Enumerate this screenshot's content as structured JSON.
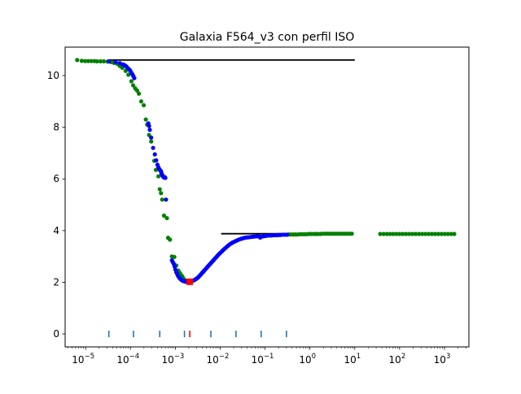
{
  "chart_data": {
    "type": "scatter",
    "title": "Galaxia F564_v3 con perfil ISO",
    "xlabel": "",
    "ylabel": "",
    "x_scale": "log",
    "xlim": [
      3.5e-06,
      3500
    ],
    "ylim": [
      -0.5,
      11.1
    ],
    "grid": false,
    "x_ticks": [
      {
        "base": "10",
        "exp": "−5",
        "value": 1e-05
      },
      {
        "base": "10",
        "exp": "−4",
        "value": 0.0001
      },
      {
        "base": "10",
        "exp": "−3",
        "value": 0.001
      },
      {
        "base": "10",
        "exp": "−2",
        "value": 0.01
      },
      {
        "base": "10",
        "exp": "−1",
        "value": 0.1
      },
      {
        "base": "10",
        "exp": "0",
        "value": 1
      },
      {
        "base": "10",
        "exp": "1",
        "value": 10
      },
      {
        "base": "10",
        "exp": "2",
        "value": 100
      },
      {
        "base": "10",
        "exp": "3",
        "value": 1000
      }
    ],
    "y_ticks": [
      {
        "label": "0",
        "value": 0
      },
      {
        "label": "2",
        "value": 2
      },
      {
        "label": "4",
        "value": 4
      },
      {
        "label": "6",
        "value": 6
      },
      {
        "label": "8",
        "value": 8
      },
      {
        "label": "10",
        "value": 10
      }
    ],
    "colors": {
      "green": "#008000",
      "blue": "#0000ff",
      "red": "#ff0000",
      "black": "#000000",
      "rug_blue": "#1f77b4"
    },
    "series": [
      {
        "color": "green",
        "marker": "dot",
        "x": [
          6.5e-06,
          8.2e-06,
          9.8e-06,
          1.15e-05,
          1.35e-05,
          1.58e-05,
          1.8e-05,
          2.15e-05,
          2.55e-05,
          3.1e-05,
          3.7e-05,
          4.3e-05,
          5.1e-05,
          5.8e-05,
          6.6e-05,
          7.8e-05,
          9e-05,
          0.000105,
          0.000115,
          0.000128,
          0.000141,
          0.000154,
          0.000174,
          0.000198,
          0.00022,
          0.000236,
          0.00026,
          0.00029,
          0.00034,
          0.00037,
          0.00042,
          0.00045,
          0.00048,
          0.00051,
          0.00056,
          0.00065,
          0.00069,
          0.00076,
          0.00084,
          0.00095,
          0.00105,
          0.00117,
          0.00128,
          0.0014,
          0.00145,
          0.0015,
          0.00158,
          0.00167,
          0.33,
          0.37,
          0.42,
          0.47,
          0.53,
          0.6,
          0.67,
          0.75,
          0.84,
          0.94,
          1.05,
          1.2,
          1.35,
          1.5,
          1.7,
          1.9,
          2.15,
          2.4,
          2.7,
          3.0,
          3.4,
          3.8,
          4.3,
          4.8,
          5.4,
          6.1,
          6.8,
          7.7,
          8.6,
          37,
          44,
          52,
          61,
          72,
          85,
          100,
          118,
          139,
          164,
          193,
          228,
          269,
          317,
          374,
          441,
          521,
          614,
          725,
          855,
          1010,
          1190,
          1400,
          1650
        ],
        "y": [
          10.6,
          10.57,
          10.56,
          10.56,
          10.56,
          10.56,
          10.55,
          10.55,
          10.55,
          10.54,
          10.52,
          10.49,
          10.45,
          10.37,
          10.3,
          10.18,
          10.03,
          9.78,
          9.62,
          9.5,
          9.42,
          9.3,
          9.0,
          8.85,
          8.3,
          8.1,
          7.7,
          7.45,
          6.7,
          6.35,
          6.1,
          5.6,
          5.45,
          5.2,
          4.58,
          4.48,
          3.72,
          3.65,
          3.0,
          2.98,
          2.65,
          2.45,
          2.35,
          2.25,
          2.2,
          2.15,
          2.1,
          2.08,
          3.85,
          3.85,
          3.85,
          3.85,
          3.85,
          3.86,
          3.86,
          3.86,
          3.86,
          3.87,
          3.87,
          3.87,
          3.87,
          3.87,
          3.87,
          3.88,
          3.88,
          3.88,
          3.88,
          3.88,
          3.88,
          3.88,
          3.88,
          3.88,
          3.88,
          3.88,
          3.88,
          3.88,
          3.88,
          3.87,
          3.87,
          3.87,
          3.87,
          3.87,
          3.87,
          3.87,
          3.87,
          3.87,
          3.87,
          3.87,
          3.87,
          3.87,
          3.87,
          3.87,
          3.87,
          3.87,
          3.87,
          3.87,
          3.87,
          3.87,
          3.87,
          3.87,
          3.87
        ]
      },
      {
        "color": "blue",
        "marker": "dot",
        "x": [
          3.3e-05,
          4.7e-05,
          5.8e-05,
          6.8e-05,
          7.4e-05,
          8e-05,
          8.6e-05,
          9.2e-05,
          9.8e-05,
          0.000104,
          0.00011,
          0.000116,
          0.000122,
          0.00025,
          0.00026,
          0.00027,
          0.00029,
          0.00032,
          0.00035,
          0.000375,
          0.0004,
          0.00042,
          0.00044,
          0.00046,
          0.00048,
          0.00049,
          0.0005,
          0.00051,
          0.00052,
          0.00053,
          0.00054,
          0.00055,
          0.00056,
          0.00057,
          0.0006,
          0.00058,
          0.00062,
          0.00084,
          0.00088,
          0.00092,
          0.00096,
          0.001,
          0.00105,
          0.0011,
          0.00115,
          0.0012,
          0.00125,
          0.0013,
          0.00135,
          0.0014,
          0.00146,
          0.00152,
          0.00158,
          0.00165,
          0.00172,
          0.0018,
          0.00188,
          0.00196,
          0.00205,
          0.00215,
          0.00225,
          0.00236,
          0.00248,
          0.0026,
          0.00272,
          0.00285,
          0.00298,
          0.00312,
          0.00327,
          0.00343,
          0.0036,
          0.00378,
          0.00396,
          0.00415,
          0.00435,
          0.00456,
          0.00478,
          0.005,
          0.00525,
          0.0055,
          0.00577,
          0.00605,
          0.00635,
          0.00665,
          0.00698,
          0.00732,
          0.00768,
          0.00806,
          0.00845,
          0.00886,
          0.0093,
          0.0098,
          0.0104,
          0.0111,
          0.0119,
          0.0128,
          0.0138,
          0.0149,
          0.0161,
          0.0175,
          0.019,
          0.0207,
          0.0225,
          0.0245,
          0.0267,
          0.0292,
          0.032,
          0.035,
          0.038,
          0.042,
          0.047,
          0.052,
          0.058,
          0.065,
          0.073,
          0.078,
          0.082,
          0.09,
          0.1,
          0.11,
          0.125,
          0.14,
          0.16,
          0.18,
          0.2,
          0.22,
          0.25,
          0.28,
          0.31
        ],
        "y": [
          10.55,
          10.52,
          10.48,
          10.43,
          10.4,
          10.36,
          10.3,
          10.25,
          10.2,
          10.12,
          10.05,
          9.98,
          9.9,
          8.15,
          8.05,
          7.9,
          7.6,
          7.2,
          6.95,
          6.72,
          6.55,
          6.45,
          6.38,
          6.33,
          6.3,
          6.22,
          6.18,
          6.15,
          6.12,
          6.1,
          6.08,
          6.07,
          6.06,
          6.05,
          6.04,
          6.07,
          5.2,
          2.85,
          2.78,
          2.72,
          2.62,
          2.5,
          2.4,
          2.32,
          2.25,
          2.2,
          2.16,
          2.13,
          2.1,
          2.08,
          2.06,
          2.05,
          2.04,
          2.03,
          2.02,
          2.02,
          2.02,
          2.02,
          2.03,
          2.03,
          2.04,
          2.05,
          2.06,
          2.08,
          2.1,
          2.12,
          2.14,
          2.17,
          2.2,
          2.24,
          2.28,
          2.32,
          2.36,
          2.4,
          2.44,
          2.48,
          2.52,
          2.56,
          2.6,
          2.64,
          2.68,
          2.72,
          2.76,
          2.8,
          2.84,
          2.88,
          2.92,
          2.96,
          3.0,
          3.04,
          3.08,
          3.12,
          3.16,
          3.21,
          3.26,
          3.31,
          3.36,
          3.41,
          3.46,
          3.5,
          3.54,
          3.57,
          3.6,
          3.63,
          3.66,
          3.68,
          3.7,
          3.72,
          3.73,
          3.74,
          3.75,
          3.76,
          3.77,
          3.78,
          3.78,
          3.73,
          3.76,
          3.78,
          3.79,
          3.8,
          3.81,
          3.81,
          3.82,
          3.82,
          3.83,
          3.83,
          3.84,
          3.84,
          3.84
        ]
      },
      {
        "color": "red",
        "marker": "square",
        "x": [
          0.0021
        ],
        "y": [
          2.02
        ]
      }
    ],
    "reference_lines": [
      {
        "color": "black",
        "x": [
          3.3e-05,
          10
        ],
        "y": [
          10.6,
          10.6
        ]
      },
      {
        "color": "black",
        "x": [
          0.0105,
          0.3
        ],
        "y": [
          3.88,
          3.88
        ]
      }
    ],
    "rug_marks": [
      {
        "x": 3.3e-05,
        "color": "rug_blue"
      },
      {
        "x": 0.000117,
        "color": "rug_blue"
      },
      {
        "x": 0.00045,
        "color": "rug_blue"
      },
      {
        "x": 0.0016,
        "color": "rug_blue"
      },
      {
        "x": 0.0021,
        "color": "red"
      },
      {
        "x": 0.0062,
        "color": "rug_blue"
      },
      {
        "x": 0.0225,
        "color": "rug_blue"
      },
      {
        "x": 0.082,
        "color": "rug_blue"
      },
      {
        "x": 0.3,
        "color": "rug_blue"
      }
    ]
  }
}
